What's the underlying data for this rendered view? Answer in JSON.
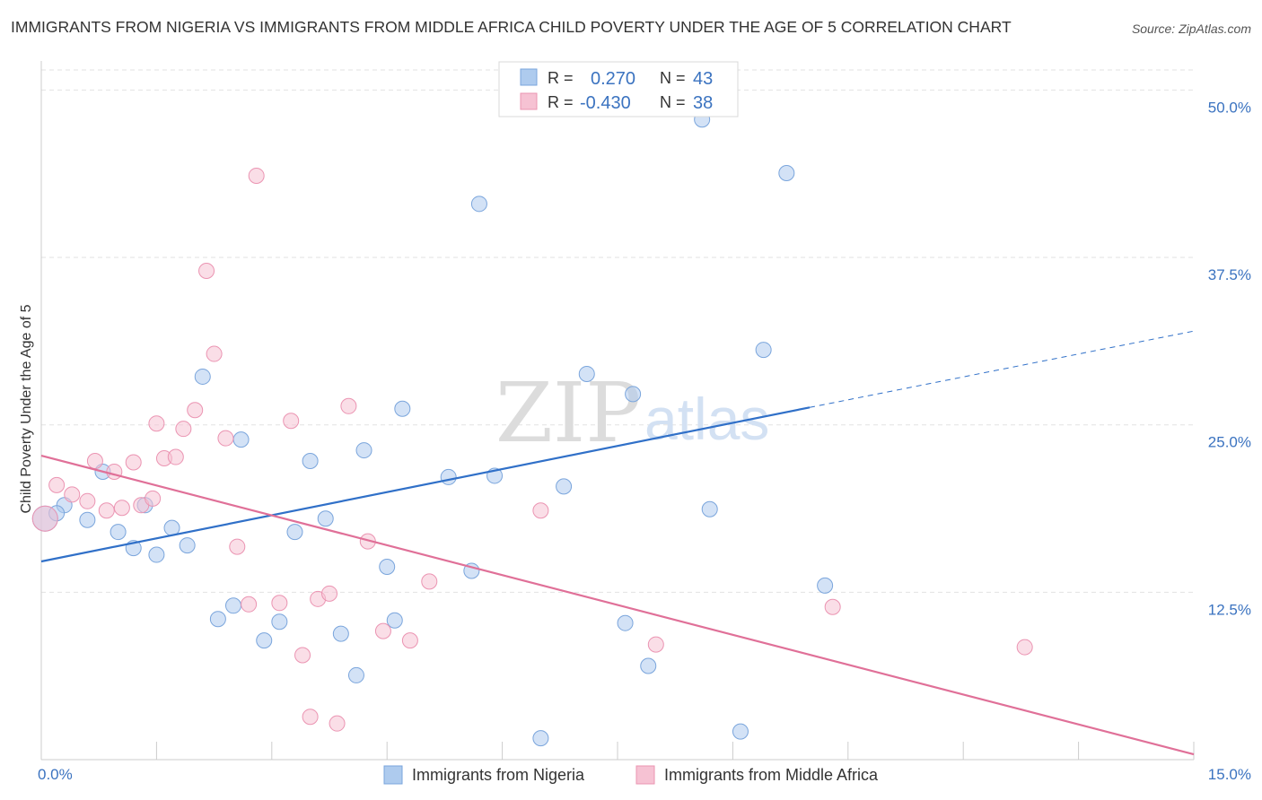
{
  "title": "IMMIGRANTS FROM NIGERIA VS IMMIGRANTS FROM MIDDLE AFRICA CHILD POVERTY UNDER THE AGE OF 5 CORRELATION CHART",
  "source": "Source: ZipAtlas.com",
  "watermark": {
    "zip": "ZIP",
    "atlas": "atlas"
  },
  "legend_top": {
    "rows": [
      {
        "r_label": "R =",
        "r_value": "0.270",
        "n_label": "N =",
        "n_value": "43"
      },
      {
        "r_label": "R =",
        "r_value": "-0.430",
        "n_label": "N =",
        "n_value": "38"
      }
    ]
  },
  "chart_data": {
    "type": "scatter",
    "ylabel": "Child Poverty Under the Age of 5",
    "x_tick_labels": {
      "min": "0.0%",
      "max": "15.0%"
    },
    "y_tick_labels": [
      "12.5%",
      "25.0%",
      "37.5%",
      "50.0%"
    ],
    "y_ticks": [
      12.5,
      25.0,
      37.5,
      50.0
    ],
    "xlim": [
      0,
      15
    ],
    "ylim": [
      0,
      51.5
    ],
    "grid": true,
    "legend_position": "bottom",
    "series": [
      {
        "name": "Immigrants from Nigeria",
        "color": "#aecbee",
        "stroke": "#7aa5dc",
        "line_color": "#3070c8",
        "trend": {
          "x0": 0.0,
          "y0": 14.8,
          "x1": 10.0,
          "y1": 26.3,
          "x_dash_end": 15.0,
          "y_dash_end": 32.0
        },
        "points": [
          [
            0.05,
            18.0
          ],
          [
            0.3,
            19.0
          ],
          [
            0.6,
            17.9
          ],
          [
            0.8,
            21.5
          ],
          [
            1.0,
            17.0
          ],
          [
            1.2,
            15.8
          ],
          [
            1.35,
            19.0
          ],
          [
            1.5,
            15.3
          ],
          [
            1.7,
            17.3
          ],
          [
            1.9,
            16.0
          ],
          [
            2.1,
            28.6
          ],
          [
            2.3,
            10.5
          ],
          [
            2.5,
            11.5
          ],
          [
            2.6,
            23.9
          ],
          [
            2.9,
            8.9
          ],
          [
            3.1,
            10.3
          ],
          [
            3.3,
            17.0
          ],
          [
            3.5,
            22.3
          ],
          [
            3.7,
            18.0
          ],
          [
            3.9,
            9.4
          ],
          [
            4.1,
            6.3
          ],
          [
            4.2,
            23.1
          ],
          [
            4.5,
            14.4
          ],
          [
            4.6,
            10.4
          ],
          [
            4.7,
            26.2
          ],
          [
            5.3,
            21.1
          ],
          [
            5.6,
            14.1
          ],
          [
            5.9,
            21.2
          ],
          [
            5.7,
            41.5
          ],
          [
            6.5,
            1.6
          ],
          [
            6.8,
            20.4
          ],
          [
            7.1,
            28.8
          ],
          [
            7.6,
            10.2
          ],
          [
            7.7,
            27.3
          ],
          [
            7.9,
            7.0
          ],
          [
            8.2,
            50.0
          ],
          [
            8.6,
            47.8
          ],
          [
            8.7,
            18.7
          ],
          [
            9.1,
            2.1
          ],
          [
            9.4,
            30.6
          ],
          [
            9.7,
            43.8
          ],
          [
            10.2,
            13.0
          ],
          [
            0.2,
            18.4
          ]
        ]
      },
      {
        "name": "Immigrants from Middle Africa",
        "color": "#f6c2d3",
        "stroke": "#eb94b2",
        "line_color": "#e07098",
        "trend": {
          "x0": 0.0,
          "y0": 22.7,
          "x1": 15.0,
          "y1": 0.4
        },
        "points": [
          [
            0.05,
            18.0
          ],
          [
            0.2,
            20.5
          ],
          [
            0.4,
            19.8
          ],
          [
            0.6,
            19.3
          ],
          [
            0.7,
            22.3
          ],
          [
            0.85,
            18.6
          ],
          [
            0.95,
            21.5
          ],
          [
            1.05,
            18.8
          ],
          [
            1.2,
            22.2
          ],
          [
            1.3,
            19.0
          ],
          [
            1.45,
            19.5
          ],
          [
            1.5,
            25.1
          ],
          [
            1.6,
            22.5
          ],
          [
            1.75,
            22.6
          ],
          [
            1.85,
            24.7
          ],
          [
            2.0,
            26.1
          ],
          [
            2.15,
            36.5
          ],
          [
            2.25,
            30.3
          ],
          [
            2.4,
            24.0
          ],
          [
            2.55,
            15.9
          ],
          [
            2.7,
            11.6
          ],
          [
            2.8,
            43.6
          ],
          [
            3.1,
            11.7
          ],
          [
            3.25,
            25.3
          ],
          [
            3.4,
            7.8
          ],
          [
            3.5,
            3.2
          ],
          [
            3.6,
            12.0
          ],
          [
            3.75,
            12.4
          ],
          [
            3.85,
            2.7
          ],
          [
            4.0,
            26.4
          ],
          [
            4.25,
            16.3
          ],
          [
            4.45,
            9.6
          ],
          [
            4.8,
            8.9
          ],
          [
            5.05,
            13.3
          ],
          [
            6.5,
            18.6
          ],
          [
            8.0,
            8.6
          ],
          [
            10.3,
            11.4
          ],
          [
            12.8,
            8.4
          ]
        ]
      }
    ]
  }
}
